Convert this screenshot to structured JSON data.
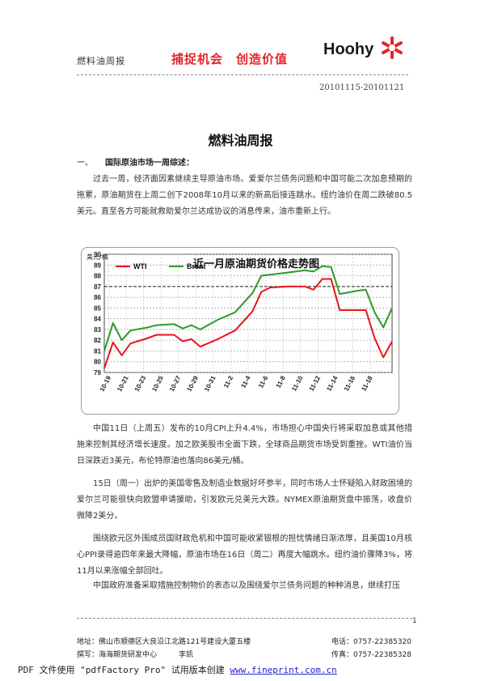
{
  "header": {
    "left_title": "燃料油周报",
    "slogan": "捕捉机会　创造价值",
    "logo_text": "Hoohy",
    "logo_icon": "asterisk-mark-icon",
    "accent_color": "#e0262b"
  },
  "date_range": "20101115-20101121",
  "doc_title": "燃料油周报",
  "section1": {
    "number": "一、",
    "title": "国际原油市场一周综述："
  },
  "paragraphs": [
    [
      "过去一周，经济面因素继续主导原油市场。爱爱尔兰债务问题和中国可能二次加息预期",
      "的拖累，原油期货在上周二创下2008年10月以来的新高后接连跳水。纽约油价在周二跌破",
      "80.5 美元。直至各方可能就救助爱尔兰达成协议的消息传来，油市重新上行。"
    ],
    [
      "中国11日（上周五）发布的10月CPI上升4.4%，市场担心中国央行将采取加息或其他",
      "措施来控制其经济增长速度。加之欧美股市全面下跌，全球商品期货市场受到重挫。WTI",
      "油价当日深跌近3美元，布伦特原油也落向86美元/桶。"
    ],
    [
      "15日（周一）出炉的美国零售及制造业数据好坏参半，同时市场人士怀疑陷入财政困",
      "境的爱尔兰可能很快向欧盟申请援助，引发欧元兑美元大跌。NYMEX原油期货盘中振荡，",
      "收盘价微降2美分。"
    ],
    [
      "围绕欧元区外围成员国财政危机和中国可能收紧银根的担忧情绪日渐浓厚，且美国10月",
      "核心PPI录得逾四年来最大降幅，原油市场在16日（周二）再度大幅跳水。纽约油价骤降3%，",
      "将11月以来涨幅全部回吐。"
    ],
    [
      "中国政府准备采取措施控制物价的表态以及围绕爱尔兰债务问题的种种消息，继续打压"
    ]
  ],
  "chart_data": {
    "type": "line",
    "title": "近一月原油期货价格走势图",
    "ylabel": "美元/桶",
    "xlabel": "",
    "ylim": [
      79,
      90
    ],
    "yticks": [
      79,
      80,
      81,
      82,
      83,
      84,
      85,
      86,
      87,
      88,
      89,
      90
    ],
    "x_tick_labels": [
      "10-19",
      "10-21",
      "10-23",
      "10-25",
      "10-27",
      "10-29",
      "10-31",
      "11-2",
      "11-4",
      "11-6",
      "11-8",
      "11-10",
      "11-12",
      "11-14",
      "11-16",
      "11-18"
    ],
    "grid": true,
    "legend_placement": "top-left",
    "series": [
      {
        "name": "WTI",
        "color": "#e8141b",
        "points": [
          [
            0,
            79.4
          ],
          [
            1,
            81.8
          ],
          [
            2,
            80.6
          ],
          [
            3,
            81.7
          ],
          [
            5,
            82.2
          ],
          [
            6,
            82.5
          ],
          [
            8,
            82.5
          ],
          [
            9,
            81.9
          ],
          [
            10,
            82.1
          ],
          [
            11,
            81.4
          ],
          [
            13,
            82.1
          ],
          [
            15,
            82.9
          ],
          [
            16,
            83.8
          ],
          [
            17,
            84.7
          ],
          [
            18,
            86.5
          ],
          [
            19,
            86.9
          ],
          [
            21,
            87.0
          ],
          [
            23,
            87.0
          ],
          [
            24,
            86.7
          ],
          [
            25,
            87.7
          ],
          [
            26,
            87.7
          ],
          [
            27,
            84.8
          ],
          [
            29,
            84.8
          ],
          [
            30,
            84.8
          ],
          [
            31,
            82.2
          ],
          [
            32,
            80.4
          ],
          [
            33,
            81.9
          ]
        ]
      },
      {
        "name": "Brent",
        "color": "#2b9a2b",
        "points": [
          [
            0,
            81.0
          ],
          [
            1,
            83.6
          ],
          [
            2,
            82.0
          ],
          [
            3,
            82.9
          ],
          [
            5,
            83.2
          ],
          [
            6,
            83.4
          ],
          [
            8,
            83.5
          ],
          [
            9,
            83.1
          ],
          [
            10,
            83.4
          ],
          [
            11,
            83.0
          ],
          [
            13,
            83.9
          ],
          [
            15,
            84.6
          ],
          [
            16,
            85.5
          ],
          [
            17,
            86.4
          ],
          [
            18,
            88.0
          ],
          [
            19,
            88.1
          ],
          [
            21,
            88.3
          ],
          [
            23,
            88.5
          ],
          [
            24,
            88.4
          ],
          [
            25,
            88.9
          ],
          [
            26,
            88.8
          ],
          [
            27,
            86.3
          ],
          [
            29,
            86.6
          ],
          [
            30,
            86.7
          ],
          [
            31,
            84.6
          ],
          [
            32,
            83.2
          ],
          [
            33,
            85.0
          ]
        ]
      }
    ]
  },
  "footer": {
    "address": "地址：佛山市顺德区大良沿江北路121号建设大厦五楼",
    "author": "撰写：海海期货研发中心　　　李凯",
    "phone": "电话：0757-22385320",
    "fax": "传真：0757-22385328",
    "page_number": "1"
  },
  "watermark": {
    "text": "PDF 文件使用 \"pdfFactory Pro\" 试用版本创建 ",
    "link": "www.fineprint.com.cn"
  }
}
